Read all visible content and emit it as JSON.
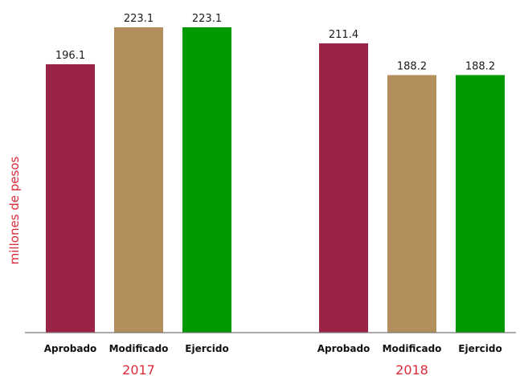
{
  "chart_data": {
    "type": "bar",
    "title": "",
    "ylabel": "millones de pesos",
    "xlabel": "",
    "ylim": [
      0,
      223.1
    ],
    "grid": false,
    "legend": "none",
    "categories": [
      "Aprobado",
      "Modificado",
      "Ejercido"
    ],
    "groups": [
      {
        "label": "2017",
        "bars": [
          {
            "category": "Aprobado",
            "value": 196.1,
            "label": "196.1"
          },
          {
            "category": "Modificado",
            "value": 223.1,
            "label": "223.1"
          },
          {
            "category": "Ejercido",
            "value": 223.1,
            "label": "223.1"
          }
        ]
      },
      {
        "label": "2018",
        "bars": [
          {
            "category": "Aprobado",
            "value": 211.4,
            "label": "211.4"
          },
          {
            "category": "Modificado",
            "value": 188.2,
            "label": "188.2"
          },
          {
            "category": "Ejercido",
            "value": 188.2,
            "label": "188.2"
          }
        ]
      }
    ],
    "colors": {
      "Aprobado": "#9b2346",
      "Modificado": "#b48f5e",
      "Ejercido": "#009a00",
      "axis": "#777777",
      "accent_text": "#d92b3a"
    }
  }
}
